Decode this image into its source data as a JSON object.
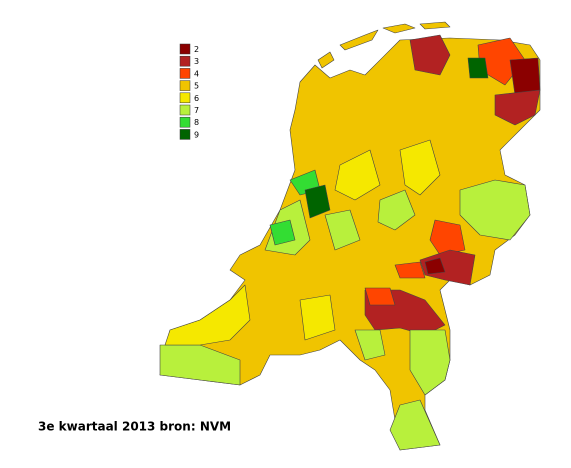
{
  "legend": {
    "items": [
      {
        "label": "2",
        "color": "#8b0000"
      },
      {
        "label": "3",
        "color": "#b22222"
      },
      {
        "label": "4",
        "color": "#ff4500"
      },
      {
        "label": "5",
        "color": "#f0c400"
      },
      {
        "label": "6",
        "color": "#f5e800"
      },
      {
        "label": "7",
        "color": "#b8f03c"
      },
      {
        "label": "8",
        "color": "#33dd33"
      },
      {
        "label": "9",
        "color": "#006400"
      }
    ]
  },
  "caption": "3e kwartaal 2013 bron: NVM"
}
